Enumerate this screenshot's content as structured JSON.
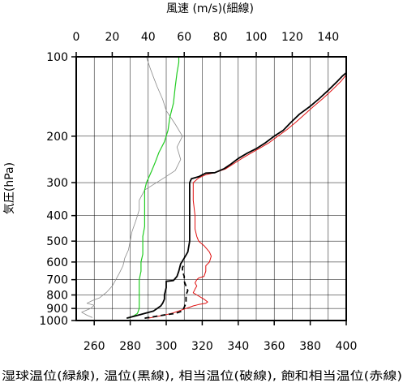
{
  "chart_data": {
    "type": "line",
    "top_axis_label": "風速 (m/s)(細線)",
    "y_axis_label": "気圧(hPa)",
    "bottom_axis_label": "湿球温位(緑線), 温位(黒線), 相当温位(破線), 飽和相当温位(赤線)",
    "y_axis": {
      "scale": "log",
      "range": [
        1000,
        100
      ],
      "ticks": [
        100,
        200,
        300,
        400,
        500,
        600,
        700,
        800,
        900,
        1000
      ]
    },
    "x_bottom_axis": {
      "unit": "K",
      "range": [
        250,
        400
      ],
      "ticks": [
        260,
        280,
        300,
        320,
        340,
        360,
        380,
        400
      ]
    },
    "x_top_axis": {
      "unit": "m/s",
      "range": [
        0,
        150
      ],
      "ticks": [
        0,
        20,
        40,
        60,
        80,
        100,
        120,
        140
      ]
    },
    "grid": true,
    "series": [
      {
        "axis": "top",
        "style": "thin-gray",
        "points": [
          [
            9,
            975
          ],
          [
            6,
            955
          ],
          [
            3,
            930
          ],
          [
            8,
            900
          ],
          [
            10,
            875
          ],
          [
            6,
            860
          ],
          [
            9,
            840
          ],
          [
            13,
            820
          ],
          [
            17,
            780
          ],
          [
            20,
            740
          ],
          [
            22,
            700
          ],
          [
            24,
            660
          ],
          [
            26,
            620
          ],
          [
            27,
            580
          ],
          [
            29,
            540
          ],
          [
            30,
            500
          ],
          [
            31,
            460
          ],
          [
            33,
            420
          ],
          [
            34,
            400
          ],
          [
            35,
            380
          ],
          [
            35,
            350
          ],
          [
            38,
            320
          ],
          [
            48,
            290
          ],
          [
            55,
            270
          ],
          [
            58,
            245
          ],
          [
            56,
            220
          ],
          [
            59,
            200
          ],
          [
            55,
            180
          ],
          [
            50,
            160
          ],
          [
            48,
            145
          ],
          [
            45,
            130
          ],
          [
            43,
            120
          ],
          [
            41,
            110
          ],
          [
            39,
            100
          ]
        ]
      },
      {
        "axis": "bottom",
        "style": "green",
        "points": [
          [
            279,
            980
          ],
          [
            282,
            960
          ],
          [
            284,
            940
          ],
          [
            285,
            900
          ],
          [
            285,
            850
          ],
          [
            285,
            800
          ],
          [
            285,
            750
          ],
          [
            285,
            700
          ],
          [
            286,
            650
          ],
          [
            286,
            600
          ],
          [
            287,
            560
          ],
          [
            287,
            520
          ],
          [
            287,
            480
          ],
          [
            288,
            440
          ],
          [
            288,
            400
          ],
          [
            288,
            360
          ],
          [
            288,
            320
          ],
          [
            289,
            300
          ],
          [
            291,
            280
          ],
          [
            292,
            270
          ],
          [
            294,
            250
          ],
          [
            296,
            230
          ],
          [
            299,
            210
          ],
          [
            301,
            190
          ],
          [
            302,
            170
          ],
          [
            304,
            150
          ],
          [
            305,
            130
          ],
          [
            306,
            115
          ],
          [
            307,
            105
          ],
          [
            307,
            100
          ]
        ]
      },
      {
        "axis": "bottom",
        "style": "black",
        "points": [
          [
            278,
            980
          ],
          [
            283,
            960
          ],
          [
            288,
            940
          ],
          [
            293,
            920
          ],
          [
            295,
            900
          ],
          [
            297,
            880
          ],
          [
            298,
            860
          ],
          [
            299,
            830
          ],
          [
            299,
            800
          ],
          [
            300,
            750
          ],
          [
            300,
            710
          ],
          [
            304,
            705
          ],
          [
            306,
            680
          ],
          [
            307,
            650
          ],
          [
            308,
            610
          ],
          [
            310,
            580
          ],
          [
            312,
            550
          ],
          [
            313,
            500
          ],
          [
            313,
            450
          ],
          [
            313,
            400
          ],
          [
            313,
            350
          ],
          [
            313,
            300
          ],
          [
            314,
            290
          ],
          [
            318,
            285
          ],
          [
            322,
            276
          ],
          [
            327,
            275
          ],
          [
            332,
            266
          ],
          [
            336,
            255
          ],
          [
            340,
            243
          ],
          [
            345,
            232
          ],
          [
            350,
            223
          ],
          [
            355,
            212
          ],
          [
            360,
            200
          ],
          [
            365,
            190
          ],
          [
            369,
            178
          ],
          [
            374,
            165
          ],
          [
            380,
            154
          ],
          [
            385,
            144
          ],
          [
            390,
            134
          ],
          [
            395,
            124
          ],
          [
            398,
            118
          ],
          [
            400,
            115
          ]
        ]
      },
      {
        "axis": "bottom",
        "style": "black-dashed",
        "points": [
          [
            288,
            980
          ],
          [
            292,
            970
          ],
          [
            296,
            960
          ],
          [
            300,
            950
          ],
          [
            305,
            940
          ],
          [
            309,
            920
          ],
          [
            310,
            890
          ],
          [
            311,
            860
          ],
          [
            311,
            830
          ],
          [
            311,
            800
          ],
          [
            312,
            770
          ],
          [
            311,
            740
          ],
          [
            310,
            710
          ],
          [
            310,
            680
          ],
          [
            309,
            650
          ],
          [
            309,
            630
          ],
          [
            310,
            610
          ]
        ]
      },
      {
        "axis": "bottom",
        "style": "red",
        "points": [
          [
            290,
            980
          ],
          [
            295,
            965
          ],
          [
            300,
            950
          ],
          [
            304,
            935
          ],
          [
            307,
            920
          ],
          [
            310,
            905
          ],
          [
            313,
            890
          ],
          [
            315,
            880
          ],
          [
            318,
            870
          ],
          [
            322,
            860
          ],
          [
            323,
            850
          ],
          [
            321,
            830
          ],
          [
            317,
            800
          ],
          [
            315,
            785
          ],
          [
            316,
            760
          ],
          [
            317,
            740
          ],
          [
            316,
            720
          ],
          [
            317,
            700
          ],
          [
            318,
            690
          ],
          [
            321,
            680
          ],
          [
            322,
            650
          ],
          [
            322,
            620
          ],
          [
            324,
            600
          ],
          [
            325,
            570
          ],
          [
            324,
            550
          ],
          [
            321,
            520
          ],
          [
            318,
            500
          ],
          [
            317,
            480
          ],
          [
            316,
            450
          ],
          [
            316,
            400
          ],
          [
            315,
            350
          ],
          [
            315,
            300
          ],
          [
            318,
            288
          ],
          [
            322,
            280
          ],
          [
            327,
            275
          ],
          [
            333,
            266
          ],
          [
            338,
            253
          ],
          [
            342,
            243
          ],
          [
            347,
            232
          ],
          [
            352,
            222
          ],
          [
            357,
            212
          ],
          [
            362,
            200
          ],
          [
            367,
            189
          ],
          [
            372,
            177
          ],
          [
            377,
            165
          ],
          [
            382,
            154
          ],
          [
            387,
            144
          ],
          [
            392,
            134
          ],
          [
            397,
            124
          ],
          [
            400,
            117
          ]
        ]
      }
    ]
  }
}
